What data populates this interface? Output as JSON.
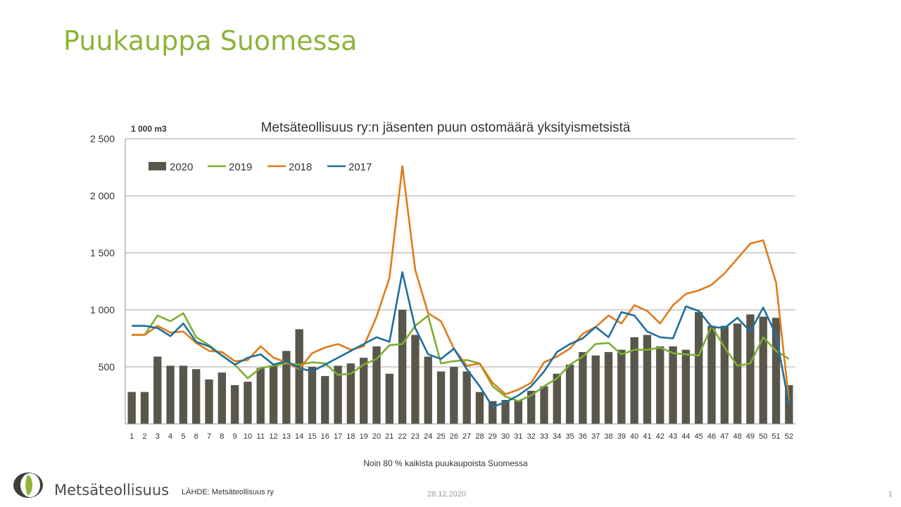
{
  "slide": {
    "title": "Puukauppa Suomessa",
    "logo_text": "Metsäteollisuus",
    "source": "LÄHDE:  Metsäteollisuus ry",
    "date": "28.12.2020",
    "page_number": "1"
  },
  "colors": {
    "title": "#8db43a",
    "bar_2020": "#59574b",
    "line_2019": "#7dae32",
    "line_2018": "#e07b1a",
    "line_2017": "#1f6f9a",
    "grid": "#a6a6a6"
  },
  "chart_data": {
    "type": "bar",
    "title": "Metsäteollisuus ry:n jäsenten puun ostomäärä yksityismetsistä",
    "unit_label": "1 000 m3",
    "xlabel": "Noin 80 % kaikista puukaupoista Suomessa",
    "ylabel": "",
    "ylim": [
      0,
      2500
    ],
    "yticks": [
      500,
      1000,
      1500,
      2000,
      2500
    ],
    "ytick_labels": [
      "500",
      "1 000",
      "1 500",
      "2 000",
      "2 500"
    ],
    "grid": true,
    "legend_position": "top-left",
    "categories": [
      "1",
      "2",
      "3",
      "4",
      "5",
      "6",
      "7",
      "8",
      "9",
      "10",
      "11",
      "12",
      "13",
      "14",
      "15",
      "16",
      "17",
      "18",
      "19",
      "20",
      "21",
      "22",
      "23",
      "24",
      "25",
      "26",
      "27",
      "28",
      "29",
      "30",
      "31",
      "32",
      "33",
      "34",
      "35",
      "36",
      "37",
      "38",
      "39",
      "40",
      "41",
      "42",
      "43",
      "44",
      "45",
      "46",
      "47",
      "48",
      "49",
      "50",
      "51",
      "52"
    ],
    "series": [
      {
        "name": "2020",
        "type": "bar",
        "values": [
          280,
          280,
          590,
          510,
          510,
          480,
          390,
          450,
          340,
          370,
          490,
          510,
          640,
          830,
          500,
          420,
          510,
          530,
          580,
          680,
          440,
          1000,
          780,
          590,
          460,
          500,
          460,
          280,
          200,
          210,
          210,
          290,
          330,
          440,
          520,
          630,
          600,
          630,
          650,
          760,
          780,
          680,
          680,
          650,
          980,
          860,
          860,
          880,
          960,
          940,
          930,
          340
        ]
      },
      {
        "name": "2019",
        "type": "line",
        "values": [
          780,
          780,
          950,
          900,
          970,
          760,
          690,
          600,
          520,
          400,
          490,
          510,
          530,
          520,
          540,
          530,
          430,
          440,
          520,
          570,
          690,
          700,
          860,
          950,
          530,
          550,
          560,
          530,
          330,
          240,
          200,
          250,
          330,
          400,
          520,
          590,
          700,
          710,
          610,
          650,
          650,
          670,
          620,
          610,
          600,
          860,
          670,
          510,
          530,
          760,
          640,
          570
        ]
      },
      {
        "name": "2018",
        "type": "line",
        "values": [
          780,
          780,
          860,
          800,
          810,
          710,
          640,
          630,
          550,
          560,
          680,
          580,
          540,
          480,
          620,
          670,
          700,
          650,
          680,
          940,
          1280,
          2260,
          1350,
          970,
          900,
          660,
          510,
          530,
          360,
          260,
          300,
          360,
          540,
          590,
          660,
          790,
          850,
          950,
          880,
          1040,
          990,
          880,
          1040,
          1140,
          1170,
          1220,
          1320,
          1450,
          1580,
          1610,
          1240,
          200
        ]
      },
      {
        "name": "2017",
        "type": "line",
        "values": [
          860,
          860,
          840,
          770,
          880,
          720,
          680,
          600,
          520,
          580,
          610,
          520,
          550,
          490,
          460,
          520,
          580,
          640,
          700,
          760,
          720,
          1330,
          840,
          610,
          570,
          660,
          480,
          330,
          150,
          190,
          250,
          330,
          460,
          630,
          700,
          750,
          850,
          760,
          980,
          950,
          810,
          760,
          750,
          1030,
          990,
          850,
          840,
          930,
          810,
          1020,
          780,
          170
        ]
      }
    ]
  }
}
